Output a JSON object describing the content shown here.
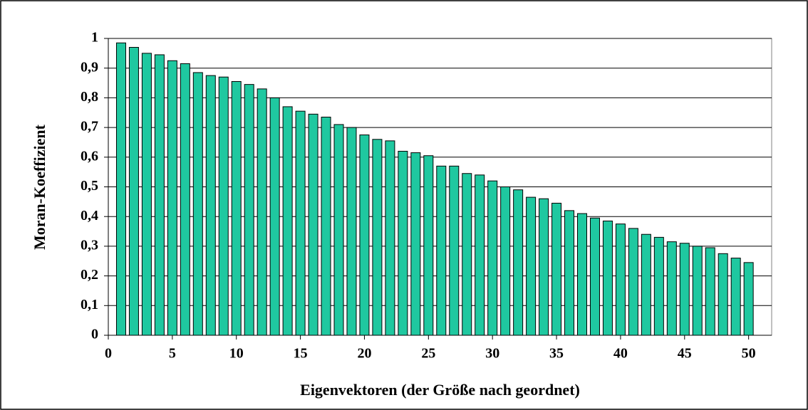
{
  "chart_data": {
    "type": "bar",
    "xlabel": "Eigenvektoren (der Größe nach geordnet)",
    "ylabel": "Moran-Koeffizient",
    "x": [
      1,
      2,
      3,
      4,
      5,
      6,
      7,
      8,
      9,
      10,
      11,
      12,
      13,
      14,
      15,
      16,
      17,
      18,
      19,
      20,
      21,
      22,
      23,
      24,
      25,
      26,
      27,
      28,
      29,
      30,
      31,
      32,
      33,
      34,
      35,
      36,
      37,
      38,
      39,
      40,
      41,
      42,
      43,
      44,
      45,
      46,
      47,
      48,
      49,
      50
    ],
    "values": [
      0.985,
      0.97,
      0.95,
      0.945,
      0.925,
      0.915,
      0.885,
      0.875,
      0.87,
      0.855,
      0.845,
      0.83,
      0.8,
      0.77,
      0.755,
      0.745,
      0.735,
      0.71,
      0.7,
      0.675,
      0.66,
      0.655,
      0.62,
      0.615,
      0.605,
      0.57,
      0.57,
      0.545,
      0.54,
      0.52,
      0.5,
      0.49,
      0.465,
      0.46,
      0.445,
      0.42,
      0.41,
      0.395,
      0.385,
      0.375,
      0.36,
      0.34,
      0.33,
      0.315,
      0.31,
      0.3,
      0.295,
      0.275,
      0.26,
      0.245
    ],
    "color": "#1fc8a0",
    "xlim": [
      0,
      51.8
    ],
    "xticks": [
      0,
      5,
      10,
      15,
      20,
      25,
      30,
      35,
      40,
      45,
      50
    ],
    "ylim": [
      0,
      1
    ],
    "yticks": [
      0,
      {
        "value": 0.1,
        "label": "0,1"
      },
      {
        "value": 0.2,
        "label": "0,2"
      },
      {
        "value": 0.3,
        "label": "0,3"
      },
      {
        "value": 0.4,
        "label": "0,4"
      },
      {
        "value": 0.5,
        "label": "0,5"
      },
      {
        "value": 0.6,
        "label": "0,6"
      },
      {
        "value": 0.7,
        "label": "0,7"
      },
      {
        "value": 0.8,
        "label": "0,8"
      },
      {
        "value": 0.9,
        "label": "0,9"
      },
      1
    ],
    "grid": true
  }
}
